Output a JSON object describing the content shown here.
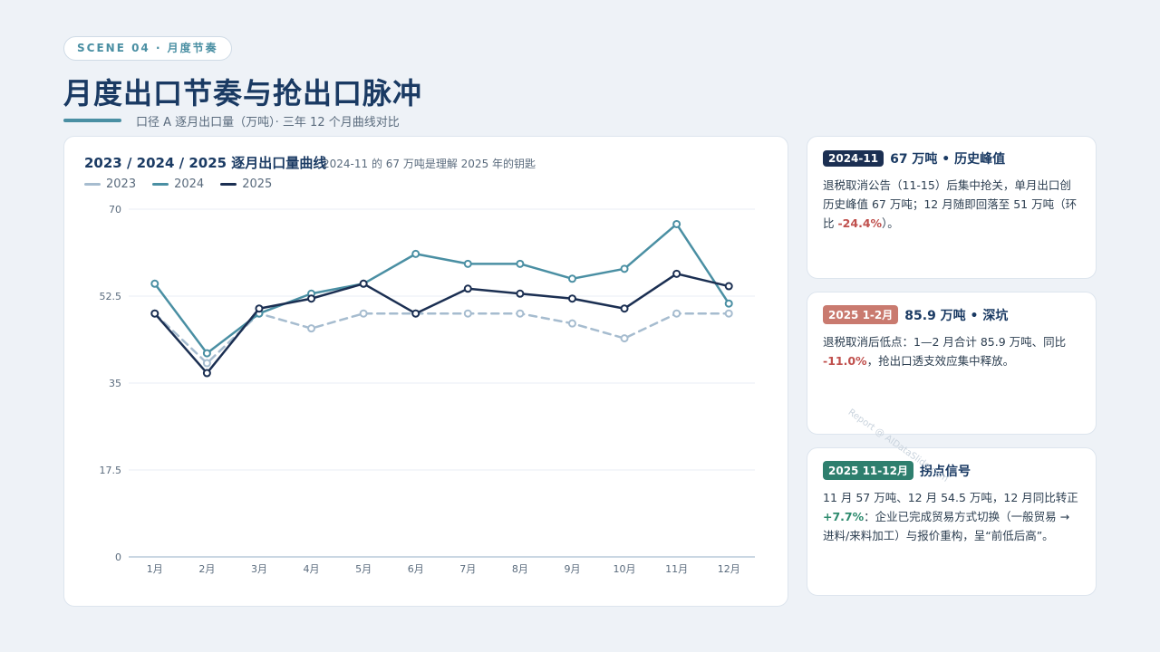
{
  "header": {
    "scene": "SCENE 04 · 月度节奏",
    "title": "月度出口节奏与抢出口脉冲",
    "subtitle": "口径 A 逐月出口量（万吨）· 三年 12 个月曲线对比"
  },
  "colors": {
    "s2023": "#a6bccf",
    "s2024": "#4a8fa3",
    "s2025": "#1b2f52",
    "badge_navy": "#1b2f52",
    "badge_red": "#c97a6f",
    "badge_green": "#2e7f6e"
  },
  "chart_data": {
    "type": "line",
    "title": "2023 / 2024 / 2025 逐月出口量曲线",
    "note": "2024-11 的 67 万吨是理解 2025 年的钥匙",
    "categories": [
      "1月",
      "2月",
      "3月",
      "4月",
      "5月",
      "6月",
      "7月",
      "8月",
      "9月",
      "10月",
      "11月",
      "12月"
    ],
    "ylim": [
      0,
      70
    ],
    "yticks": [
      "0",
      "17.5",
      "35",
      "52.5",
      "70"
    ],
    "grid": true,
    "legend": "top-left",
    "series": [
      {
        "name": "2023",
        "style": "dashed",
        "values": [
          49,
          39,
          49,
          46,
          49,
          49,
          49,
          49,
          47,
          44,
          49,
          49
        ]
      },
      {
        "name": "2024",
        "style": "solid",
        "values": [
          55,
          41,
          49,
          53,
          55,
          61,
          59,
          59,
          56,
          58,
          67,
          51
        ]
      },
      {
        "name": "2025",
        "style": "solid",
        "values": [
          49,
          37,
          50,
          52,
          55,
          49,
          54,
          53,
          52,
          50,
          57,
          54.5
        ]
      }
    ]
  },
  "cards": [
    {
      "badge": "2024-11",
      "title": "67 万吨 • 历史峰值",
      "body_a": "退税取消公告（11-15）后集中抢关，单月出口创历史峰值 67 万吨；12 月随即回落至 51 万吨（环比 ",
      "highlight": "-24.4%",
      "body_b": "）。"
    },
    {
      "badge": "2025 1-2月",
      "title": "85.9 万吨 • 深坑",
      "body_a": "退税取消后低点：1—2 月合计 85.9 万吨、同比 ",
      "highlight": "-11.0%",
      "body_b": "，抢出口透支效应集中释放。"
    },
    {
      "badge": "2025 11-12月",
      "title": "拐点信号",
      "body_a": "11 月 57 万吨、12 月 54.5 万吨，12 月同比转正 ",
      "highlight": "+7.7%",
      "body_b": "：企业已完成贸易方式切换（一般贸易 → 进料/来料加工）与报价重构，呈“前低后高”。"
    }
  ],
  "watermark": "Report @ AIDataSlide.com"
}
